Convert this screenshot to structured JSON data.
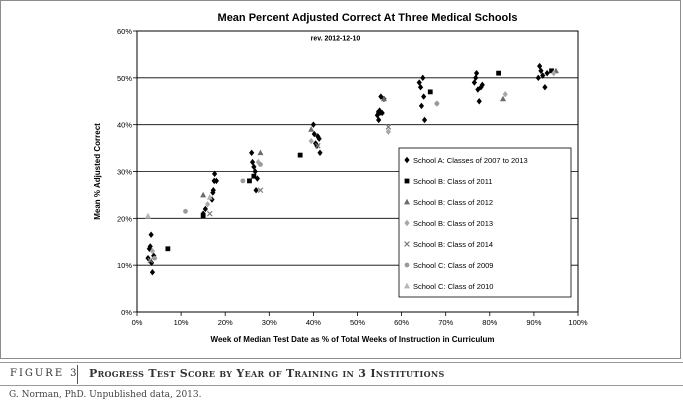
{
  "figure": {
    "label": "FIGURE",
    "number": "3",
    "title": "Progress Test Score by Year of Training in 3 Institutions",
    "source": "G. Norman, PhD. Unpublished data, 2013."
  },
  "chart_data": {
    "type": "scatter",
    "title": "Mean Percent Adjusted Correct At  Three Medical Schools",
    "annotation": "rev. 2012-12-10",
    "xlabel": "Week of Median Test Date as % of Total Weeks of Instruction in Curriculum",
    "ylabel": "Mean % Adjusted Correct",
    "xlim": [
      0,
      100
    ],
    "ylim": [
      0,
      60
    ],
    "x_ticks": [
      "0%",
      "10%",
      "20%",
      "30%",
      "40%",
      "50%",
      "60%",
      "70%",
      "80%",
      "90%",
      "100%"
    ],
    "y_ticks": [
      "0%",
      "10%",
      "20%",
      "30%",
      "40%",
      "50%",
      "60%"
    ],
    "grid": "horizontal",
    "legend_position": "right",
    "series": [
      {
        "name": "School A: Classes of 2007 to 2013",
        "marker": "diamond",
        "color": "#000000",
        "points": [
          [
            2.5,
            11.5
          ],
          [
            2.8,
            13.5
          ],
          [
            3.0,
            14.0
          ],
          [
            3.2,
            16.5
          ],
          [
            3.3,
            10.5
          ],
          [
            3.5,
            8.5
          ],
          [
            3.8,
            12.0
          ],
          [
            15.0,
            21.0
          ],
          [
            15.5,
            22.0
          ],
          [
            17.0,
            24.0
          ],
          [
            17.2,
            25.5
          ],
          [
            17.3,
            26.0
          ],
          [
            17.5,
            28.0
          ],
          [
            17.6,
            29.5
          ],
          [
            18.0,
            28.0
          ],
          [
            26.0,
            34.0
          ],
          [
            26.2,
            32.0
          ],
          [
            26.5,
            31.0
          ],
          [
            26.8,
            30.0
          ],
          [
            27.0,
            26.0
          ],
          [
            27.3,
            28.5
          ],
          [
            40.0,
            40.0
          ],
          [
            40.2,
            38.0
          ],
          [
            40.5,
            36.0
          ],
          [
            40.8,
            35.5
          ],
          [
            41.0,
            37.5
          ],
          [
            41.3,
            37.0
          ],
          [
            41.5,
            34.0
          ],
          [
            54.5,
            42.0
          ],
          [
            54.8,
            41.0
          ],
          [
            55.0,
            43.0
          ],
          [
            55.3,
            46.0
          ],
          [
            55.6,
            42.5
          ],
          [
            56.0,
            45.5
          ],
          [
            64.0,
            49.0
          ],
          [
            64.3,
            48.0
          ],
          [
            64.5,
            44.0
          ],
          [
            64.8,
            50.0
          ],
          [
            65.0,
            46.0
          ],
          [
            65.2,
            41.0
          ],
          [
            76.5,
            49.0
          ],
          [
            76.8,
            50.0
          ],
          [
            77.0,
            51.0
          ],
          [
            77.3,
            47.5
          ],
          [
            77.6,
            45.0
          ],
          [
            78.0,
            48.0
          ],
          [
            78.3,
            48.5
          ],
          [
            91.0,
            50.0
          ],
          [
            91.3,
            52.5
          ],
          [
            91.6,
            51.5
          ],
          [
            92.0,
            50.5
          ],
          [
            92.5,
            48.0
          ],
          [
            93.0,
            51.0
          ]
        ]
      },
      {
        "name": "School B: Class of 2011",
        "marker": "square",
        "color": "#000000",
        "points": [
          [
            7.0,
            13.5
          ],
          [
            15.0,
            20.5
          ],
          [
            25.5,
            28.0
          ],
          [
            26.5,
            29.0
          ],
          [
            37.0,
            33.5
          ],
          [
            54.8,
            42.5
          ],
          [
            66.5,
            47.0
          ],
          [
            82.0,
            51.0
          ],
          [
            94.0,
            51.5
          ]
        ]
      },
      {
        "name": "School B: Class of 2012",
        "marker": "triangle",
        "color": "#6b6b6b",
        "points": [
          [
            15.0,
            25.0
          ],
          [
            28.0,
            34.0
          ],
          [
            39.5,
            39.0
          ],
          [
            56.0,
            45.5
          ],
          [
            83.0,
            45.5
          ],
          [
            95.0,
            51.5
          ]
        ]
      },
      {
        "name": "School B: Class of 2013",
        "marker": "diamond",
        "color": "#a8a8a8",
        "points": [
          [
            3.5,
            13.0
          ],
          [
            16.0,
            23.0
          ],
          [
            27.5,
            32.0
          ],
          [
            39.5,
            36.5
          ],
          [
            57.0,
            38.5
          ],
          [
            68.0,
            44.5
          ],
          [
            83.5,
            46.5
          ],
          [
            94.5,
            51.0
          ]
        ]
      },
      {
        "name": "School B: Class of 2014",
        "marker": "x",
        "color": "#7a7a7a",
        "points": [
          [
            3.0,
            11.0
          ],
          [
            16.5,
            21.0
          ],
          [
            28.0,
            26.0
          ],
          [
            41.0,
            35.5
          ],
          [
            57.0,
            39.5
          ]
        ]
      },
      {
        "name": "School C: Class of 2009",
        "marker": "circle",
        "color": "#9a9a9a",
        "points": [
          [
            4.0,
            11.5
          ],
          [
            11.0,
            21.5
          ],
          [
            24.0,
            28.0
          ],
          [
            28.0,
            31.5
          ],
          [
            68.0,
            44.5
          ]
        ]
      },
      {
        "name": "School C: Class of 2010",
        "marker": "triangle",
        "color": "#b5b5b5",
        "points": [
          [
            2.5,
            20.5
          ],
          [
            16.5,
            24.5
          ]
        ]
      }
    ]
  }
}
